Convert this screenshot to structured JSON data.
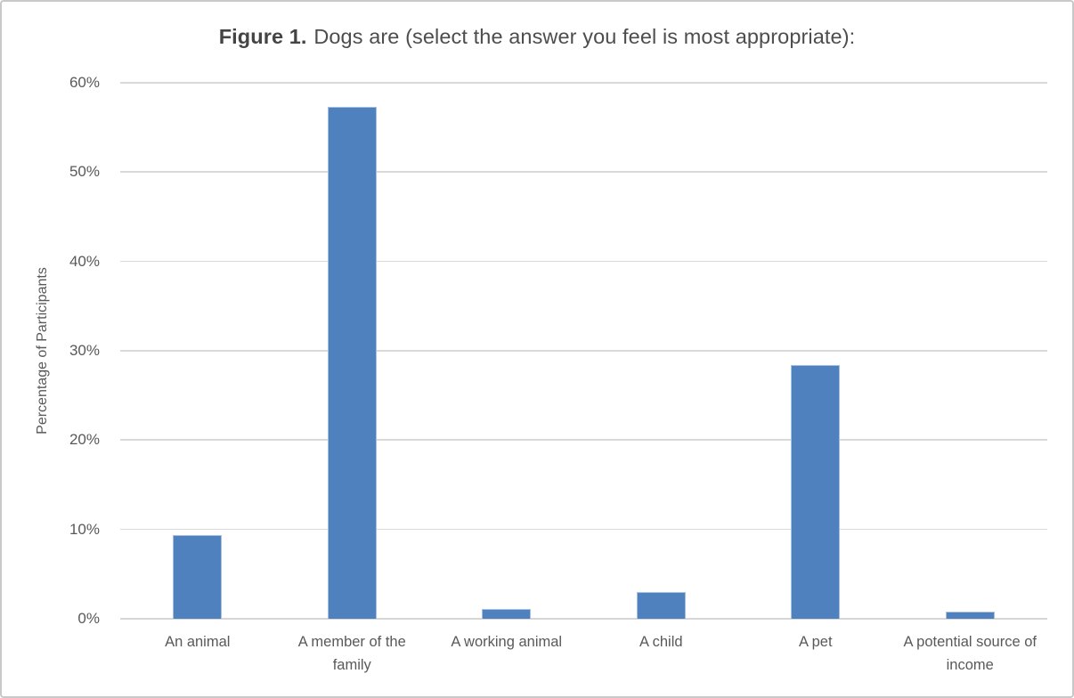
{
  "figure": {
    "title_bold": "Figure 1.",
    "title_rest": "Dogs are (select the answer you feel is most appropriate):"
  },
  "chart_data": {
    "type": "bar",
    "title": "Figure 1. Dogs are (select the answer you feel is most appropriate):",
    "categories": [
      "An animal",
      "A member of the family",
      "A working animal",
      "A child",
      "A pet",
      "A potential source of income"
    ],
    "values": [
      9.4,
      57.3,
      1.1,
      3.0,
      28.4,
      0.8
    ],
    "xlabel": "",
    "ylabel": "Percentage of Participants",
    "ytick_labels": [
      "0%",
      "10%",
      "20%",
      "30%",
      "40%",
      "50%",
      "60%"
    ],
    "ytick_values": [
      0,
      10,
      20,
      30,
      40,
      50,
      60
    ],
    "ylim": [
      0,
      60
    ],
    "grid": true,
    "legend": false
  },
  "colors": {
    "bar": "#4E81BD",
    "bar_edge": "#A8C0E0",
    "gridline": "#D9D9D9",
    "baseline": "#D6D6D6",
    "axis_text": "#595959",
    "title_text": "#444444",
    "title_text2": "#4D4D4D",
    "frame_border": "#C8C8C8",
    "background": "#FFFFFF"
  }
}
